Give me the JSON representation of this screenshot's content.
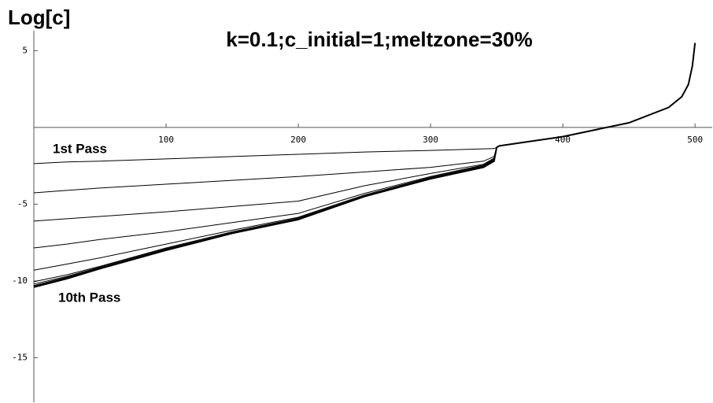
{
  "chart_data": {
    "type": "line",
    "title": "k=0.1;c_initial=1;meltzone=30%",
    "y_label": "Log[c]",
    "annotations": [
      "1st Pass",
      "10th Pass"
    ],
    "color": "#000000",
    "x": [
      0,
      25,
      50,
      100,
      150,
      200,
      250,
      300,
      340,
      348,
      350,
      352,
      360,
      400,
      450,
      480,
      490,
      495,
      498,
      500
    ],
    "series": [
      {
        "values": [
          -2.36,
          -2.25,
          -2.2,
          -2.05,
          -1.9,
          -1.75,
          -1.6,
          -1.5,
          -1.4,
          -1.38,
          -1.3,
          -1.2,
          -1.1,
          -0.6,
          0.3,
          1.3,
          2.0,
          2.8,
          4.0,
          5.5
        ]
      },
      {
        "values": [
          -4.26,
          -4.1,
          -3.95,
          -3.7,
          -3.45,
          -3.2,
          -2.9,
          -2.6,
          -2.2,
          -1.9,
          -1.3,
          -1.2,
          -1.1,
          -0.6,
          0.3,
          1.3,
          2.0,
          2.8,
          4.0,
          5.5
        ]
      },
      {
        "values": [
          -6.1,
          -5.95,
          -5.8,
          -5.5,
          -5.15,
          -4.8,
          -3.8,
          -3.0,
          -2.4,
          -2.0,
          -1.3,
          -1.2,
          -1.1,
          -0.6,
          0.3,
          1.3,
          2.0,
          2.8,
          4.0,
          5.5
        ]
      },
      {
        "values": [
          -7.85,
          -7.6,
          -7.3,
          -6.8,
          -6.2,
          -5.6,
          -4.3,
          -3.2,
          -2.45,
          -2.05,
          -1.3,
          -1.2,
          -1.1,
          -0.6,
          0.3,
          1.3,
          2.0,
          2.8,
          4.0,
          5.5
        ]
      },
      {
        "values": [
          -9.3,
          -8.9,
          -8.5,
          -7.6,
          -6.7,
          -5.85,
          -4.4,
          -3.25,
          -2.5,
          -2.1,
          -1.3,
          -1.2,
          -1.1,
          -0.6,
          0.3,
          1.3,
          2.0,
          2.8,
          4.0,
          5.5
        ]
      },
      {
        "values": [
          -10.05,
          -9.6,
          -9.05,
          -7.85,
          -6.8,
          -5.9,
          -4.45,
          -3.3,
          -2.55,
          -2.15,
          -1.3,
          -1.2,
          -1.1,
          -0.6,
          0.3,
          1.3,
          2.0,
          2.8,
          4.0,
          5.5
        ]
      },
      {
        "values": [
          -10.2,
          -9.7,
          -9.1,
          -7.9,
          -6.85,
          -5.95,
          -4.45,
          -3.3,
          -2.55,
          -2.15,
          -1.3,
          -1.2,
          -1.1,
          -0.6,
          0.3,
          1.3,
          2.0,
          2.8,
          4.0,
          5.5
        ]
      },
      {
        "values": [
          -10.3,
          -9.75,
          -9.15,
          -7.95,
          -6.85,
          -5.95,
          -4.47,
          -3.32,
          -2.57,
          -2.17,
          -1.3,
          -1.2,
          -1.1,
          -0.6,
          0.3,
          1.3,
          2.0,
          2.8,
          4.0,
          5.5
        ]
      },
      {
        "values": [
          -10.35,
          -9.8,
          -9.2,
          -7.95,
          -6.9,
          -6.0,
          -4.48,
          -3.33,
          -2.58,
          -2.18,
          -1.3,
          -1.2,
          -1.1,
          -0.6,
          0.3,
          1.3,
          2.0,
          2.8,
          4.0,
          5.5
        ]
      },
      {
        "values": [
          -10.4,
          -9.85,
          -9.2,
          -8.0,
          -6.9,
          -6.0,
          -4.5,
          -3.35,
          -2.6,
          -2.2,
          -1.3,
          -1.2,
          -1.1,
          -0.6,
          0.3,
          1.3,
          2.0,
          2.8,
          4.0,
          5.5
        ]
      }
    ],
    "xlim": [
      0,
      513
    ],
    "ylim": [
      -17.9,
      6.3
    ],
    "xticks": [
      100,
      200,
      300,
      400,
      500
    ],
    "yticks": [
      5,
      -5,
      -10,
      -15
    ]
  }
}
